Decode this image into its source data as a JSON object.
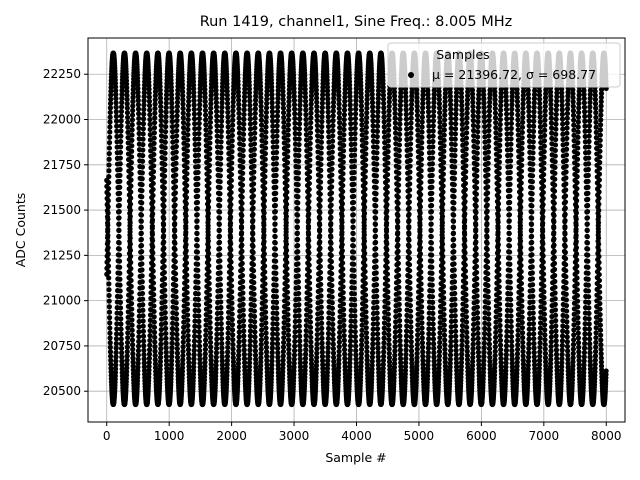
{
  "chart_data": {
    "type": "scatter",
    "title": "Run 1419, channel1, Sine Freq.: 8.005 MHz",
    "xlabel": "Sample #",
    "ylabel": "ADC Counts",
    "xlim": [
      -300,
      8300
    ],
    "ylim": [
      20330,
      22450
    ],
    "xticks": [
      0,
      1000,
      2000,
      3000,
      4000,
      5000,
      6000,
      7000,
      8000
    ],
    "yticks": [
      20500,
      20750,
      21000,
      21250,
      21500,
      21750,
      22000,
      22250
    ],
    "grid": true,
    "legend": {
      "placement": "top-right",
      "title": "Samples",
      "entry": "μ = 21396.72, σ = 698.77"
    },
    "stats": {
      "mean": 21396.72,
      "sigma": 698.77
    },
    "series": [
      {
        "marker_color": "#000000",
        "sine": {
          "offset": 21396.72,
          "amplitude": 970,
          "cycles_per_sample": 0.4972,
          "n_samples": 8000,
          "phases_deg": [
            16,
            61,
            106,
            151,
            196,
            241,
            286,
            331
          ]
        }
      }
    ]
  }
}
